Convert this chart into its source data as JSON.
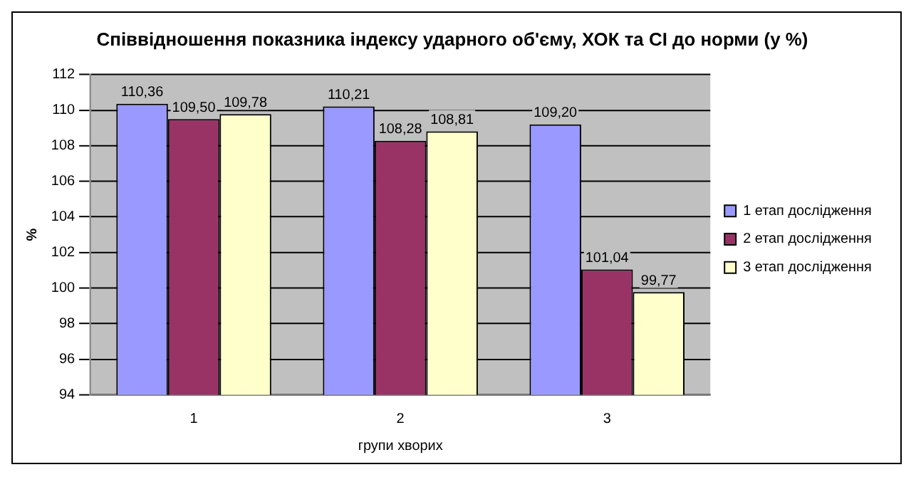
{
  "chart_data": {
    "type": "bar",
    "title": "Співвідношення показника індексу ударного об'єму, ХОК та СІ до норми (у %)",
    "xlabel": "групи хворих",
    "ylabel": "%",
    "categories": [
      "1",
      "2",
      "3"
    ],
    "series": [
      {
        "name": "1 етап дослідження",
        "color": "#9999ff",
        "values": [
          110.36,
          110.21,
          109.2
        ],
        "value_labels": [
          "110,36",
          "110,21",
          "109,20"
        ]
      },
      {
        "name": "2 етап дослідження",
        "color": "#993366",
        "values": [
          109.5,
          108.28,
          101.04
        ],
        "value_labels": [
          "109,50",
          "108,28",
          "101,04"
        ]
      },
      {
        "name": "3 етап дослідження",
        "color": "#ffffcc",
        "values": [
          109.78,
          108.81,
          99.77
        ],
        "value_labels": [
          "109,78",
          "108,81",
          "99,77"
        ]
      }
    ],
    "ylim": [
      94,
      112
    ],
    "yticks": [
      94,
      96,
      98,
      100,
      102,
      104,
      106,
      108,
      110,
      112
    ],
    "grid": "y",
    "legend": "right"
  }
}
